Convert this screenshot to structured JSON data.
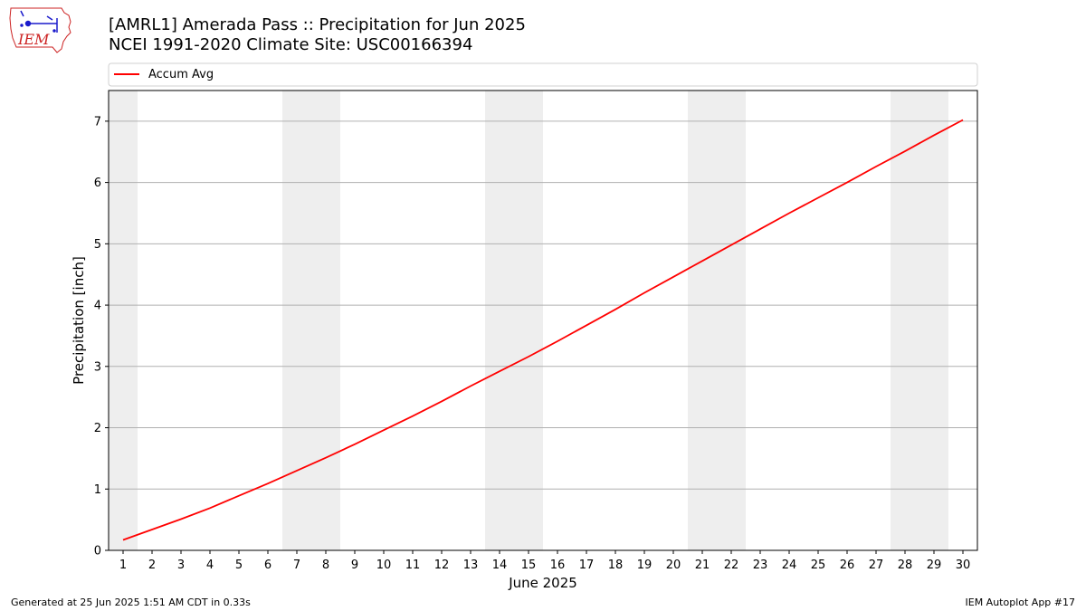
{
  "header": {
    "title_line1": "[AMRL1] Amerada Pass :: Precipitation for Jun 2025",
    "title_line2": "NCEI 1991-2020 Climate Site: USC00166394",
    "logo_text": "IEM"
  },
  "footer": {
    "generated": "Generated at 25 Jun 2025 1:51 AM CDT in 0.33s",
    "app": "IEM Autoplot App #17"
  },
  "colors": {
    "line": "#ff0000",
    "weekend_band": "#eeeeee",
    "grid": "#b0b0b0",
    "logo": "#cc2222"
  },
  "chart_data": {
    "type": "line",
    "xlabel": "June 2025",
    "ylabel": "Precipitation [inch]",
    "xlim": [
      0.5,
      30.5
    ],
    "ylim": [
      0,
      7.5
    ],
    "yticks": [
      0,
      1,
      2,
      3,
      4,
      5,
      6,
      7
    ],
    "xticks": [
      1,
      2,
      3,
      4,
      5,
      6,
      7,
      8,
      9,
      10,
      11,
      12,
      13,
      14,
      15,
      16,
      17,
      18,
      19,
      20,
      21,
      22,
      23,
      24,
      25,
      26,
      27,
      28,
      29,
      30
    ],
    "grid": "horizontal",
    "legend_position": "top, above plot",
    "weekend_bands": [
      [
        0.5,
        1.5
      ],
      [
        6.5,
        8.5
      ],
      [
        13.5,
        15.5
      ],
      [
        20.5,
        22.5
      ],
      [
        27.5,
        29.5
      ]
    ],
    "series": [
      {
        "name": "Accum Avg",
        "color": "#ff0000",
        "x": [
          1,
          2,
          3,
          4,
          5,
          6,
          7,
          8,
          9,
          10,
          11,
          12,
          13,
          14,
          15,
          16,
          17,
          18,
          19,
          20,
          21,
          22,
          23,
          24,
          25,
          26,
          27,
          28,
          29,
          30
        ],
        "y": [
          0.17,
          0.34,
          0.51,
          0.69,
          0.89,
          1.09,
          1.3,
          1.51,
          1.73,
          1.96,
          2.19,
          2.43,
          2.68,
          2.92,
          3.16,
          3.41,
          3.67,
          3.93,
          4.2,
          4.46,
          4.72,
          4.98,
          5.24,
          5.5,
          5.75,
          6.0,
          6.26,
          6.51,
          6.77,
          7.02
        ]
      }
    ]
  }
}
